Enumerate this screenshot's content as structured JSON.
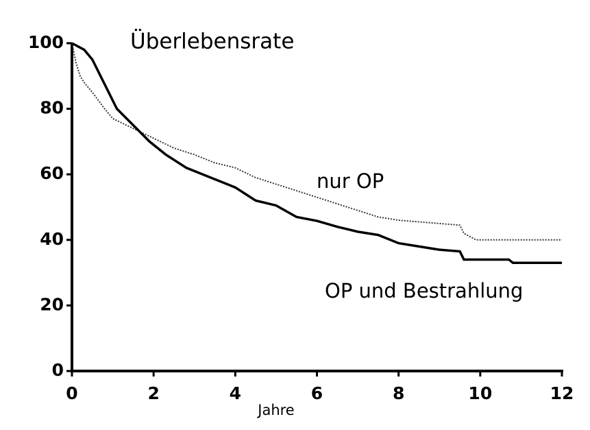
{
  "chart_data": {
    "type": "line",
    "title": "Überlebensrate",
    "x_label": "Jahre",
    "xlim": [
      0,
      12
    ],
    "ylim": [
      0,
      100
    ],
    "xticks": [
      0,
      2,
      4,
      6,
      8,
      10,
      12
    ],
    "yticks": [
      0,
      20,
      40,
      60,
      80,
      100
    ],
    "grid": false,
    "series": [
      {
        "name": "nur OP",
        "color": "#333333",
        "linestyle": "dotted",
        "x": [
          0,
          0.1,
          0.2,
          0.3,
          0.5,
          0.8,
          1.0,
          1.5,
          2.0,
          2.5,
          3.0,
          3.5,
          4.0,
          4.5,
          5.0,
          5.5,
          6.0,
          6.5,
          7.0,
          7.5,
          8.0,
          8.5,
          9.0,
          9.5,
          9.6,
          9.9,
          10.5,
          11.0,
          12.0
        ],
        "values": [
          100,
          94,
          90,
          88,
          85,
          80,
          77,
          74,
          71,
          68,
          66,
          63.5,
          62,
          59,
          57,
          55,
          53,
          51,
          49,
          47,
          46,
          45.5,
          45,
          44.5,
          42,
          40,
          40,
          40,
          40
        ]
      },
      {
        "name": "OP und Bestrahlung",
        "color": "#000000",
        "linestyle": "solid",
        "x": [
          0,
          0.3,
          0.5,
          0.7,
          0.9,
          1.1,
          1.5,
          1.9,
          2.3,
          2.8,
          3.3,
          3.8,
          4.0,
          4.5,
          5.0,
          5.5,
          6.0,
          6.5,
          7.0,
          7.5,
          8.0,
          8.5,
          9.0,
          9.5,
          9.6,
          10.7,
          10.8,
          12.0
        ],
        "values": [
          100,
          98,
          95,
          90,
          85,
          80,
          75,
          70,
          66,
          62,
          59.5,
          57,
          56,
          52,
          50.5,
          47,
          45.8,
          44,
          42.5,
          41.5,
          39,
          38,
          37,
          36.5,
          34,
          34,
          33,
          33
        ]
      }
    ]
  }
}
